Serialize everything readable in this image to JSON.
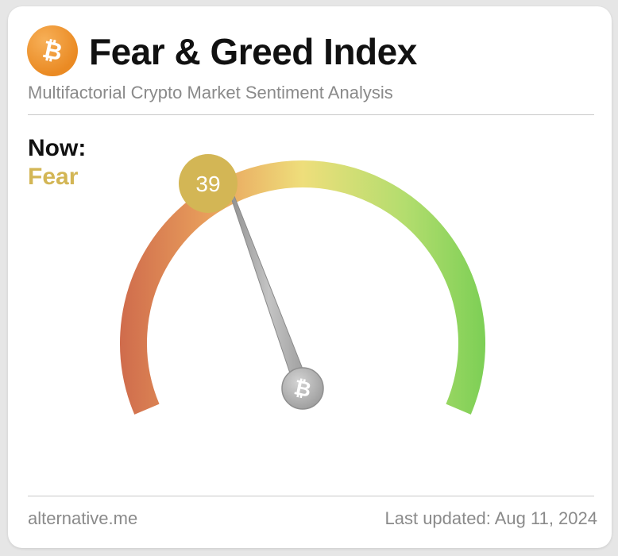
{
  "header": {
    "title": "Fear & Greed Index",
    "subtitle": "Multifactorial Crypto Market Sentiment Analysis",
    "logo_icon": "bitcoin-icon"
  },
  "status": {
    "now_label": "Now:",
    "classification": "Fear",
    "value": "39",
    "badge_color": "#d3b655"
  },
  "gauge": {
    "min": 0,
    "max": 100,
    "value": 39,
    "colors": [
      "#cf6b4c",
      "#e9a05c",
      "#eede7b",
      "#9fd868",
      "#7ccf55"
    ],
    "hub_icon": "bitcoin-icon"
  },
  "footer": {
    "source": "alternative.me",
    "updated": "Last updated: Aug 11, 2024"
  }
}
